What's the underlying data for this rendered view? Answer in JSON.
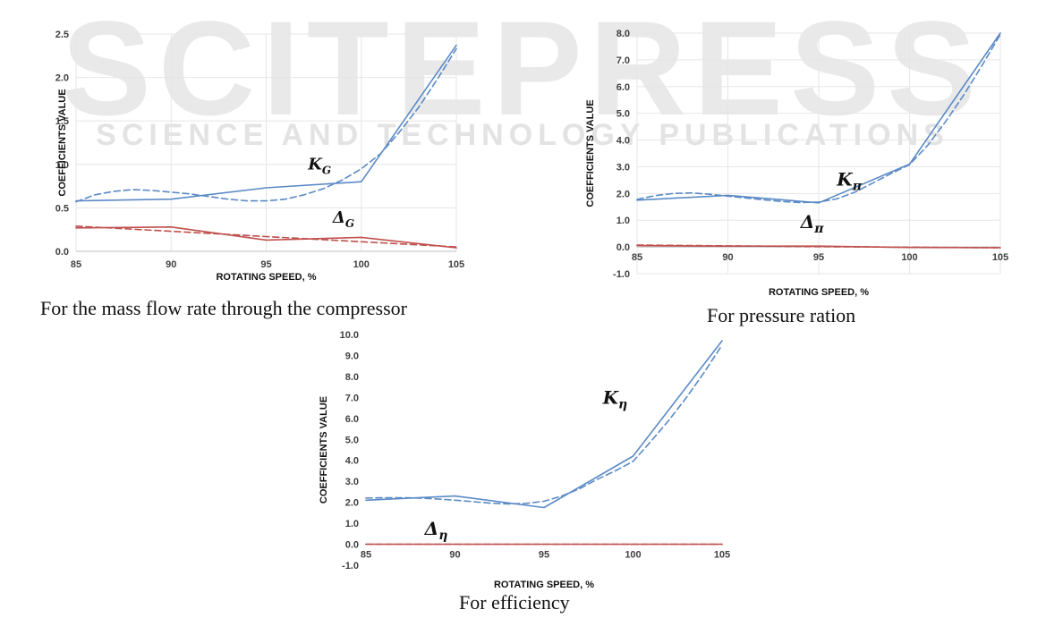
{
  "watermark": {
    "brand": "SCITEPRESS",
    "sub": "SCIENCE AND TECHNOLOGY PUBLICATIONS"
  },
  "colors": {
    "k_series": "#5b8ac6",
    "delta_series": "#c0504d",
    "grid": "#e6e6e6",
    "axis": "#bfbfbf"
  },
  "chart_data": [
    {
      "type": "line",
      "title": "",
      "caption": "For the mass flow rate through the compressor",
      "xlabel": "ROTATING SPEED, %",
      "ylabel": "COEFFICIENTS VALUE",
      "x": [
        85,
        90,
        95,
        100,
        105
      ],
      "xlim": [
        85,
        105
      ],
      "ylim": [
        0.0,
        2.5
      ],
      "yticks": [
        "0.0",
        "0.5",
        "1.0",
        "1.5",
        "2.0",
        "2.5"
      ],
      "grid": true,
      "series": [
        {
          "name": "K_G (line)",
          "style": "solid",
          "color": "#5b8ac6",
          "values": [
            0.58,
            0.6,
            0.73,
            0.8,
            2.37
          ]
        },
        {
          "name": "K_G (trend)",
          "style": "dashed",
          "color": "#5b8ac6",
          "x": [
            85,
            86,
            87,
            88,
            89,
            90,
            91,
            92,
            93,
            94,
            95,
            96,
            97,
            98,
            99,
            100,
            101,
            102,
            103,
            104,
            105
          ],
          "values": [
            0.57,
            0.65,
            0.69,
            0.71,
            0.7,
            0.68,
            0.66,
            0.63,
            0.6,
            0.58,
            0.58,
            0.6,
            0.65,
            0.72,
            0.82,
            0.95,
            1.12,
            1.37,
            1.65,
            1.98,
            2.33
          ]
        },
        {
          "name": "Δ_G (line)",
          "style": "solid",
          "color": "#c0504d",
          "values": [
            0.27,
            0.28,
            0.13,
            0.16,
            0.04
          ]
        },
        {
          "name": "Δ_G (trend)",
          "style": "dashed",
          "color": "#c0504d",
          "x": [
            85,
            90,
            95,
            100,
            105
          ],
          "values": [
            0.29,
            0.23,
            0.17,
            0.11,
            0.05
          ]
        }
      ],
      "annotations": [
        {
          "main": "K",
          "sub": "G",
          "x": 97.2,
          "y": 0.94
        },
        {
          "main": "Δ",
          "sub": "G",
          "x": 98.5,
          "y": 0.33
        }
      ]
    },
    {
      "type": "line",
      "title": "",
      "caption": "For pressure ration",
      "xlabel": "ROTATING SPEED, %",
      "ylabel": "COEFFICIENTS VALUE",
      "x": [
        85,
        90,
        95,
        100,
        105
      ],
      "xlim": [
        85,
        105
      ],
      "ylim": [
        -1.0,
        8.0
      ],
      "yticks": [
        "-1.0",
        "0.0",
        "1.0",
        "2.0",
        "3.0",
        "4.0",
        "5.0",
        "6.0",
        "7.0",
        "8.0"
      ],
      "grid": true,
      "series": [
        {
          "name": "K_π (line)",
          "style": "solid",
          "color": "#5b8ac6",
          "values": [
            1.75,
            1.93,
            1.65,
            3.1,
            8.0
          ]
        },
        {
          "name": "K_π (trend)",
          "style": "dashed",
          "color": "#5b8ac6",
          "x": [
            85,
            86,
            87,
            88,
            89,
            90,
            91,
            92,
            93,
            94,
            95,
            96,
            97,
            98,
            99,
            100,
            101,
            102,
            103,
            104,
            105
          ],
          "values": [
            1.78,
            1.92,
            2.0,
            2.02,
            1.97,
            1.9,
            1.83,
            1.76,
            1.7,
            1.66,
            1.68,
            1.8,
            2.05,
            2.4,
            2.75,
            3.08,
            3.8,
            4.7,
            5.7,
            6.8,
            7.95
          ]
        },
        {
          "name": "Δ_π (line)",
          "style": "solid",
          "color": "#c0504d",
          "values": [
            0.05,
            0.03,
            0.03,
            -0.02,
            -0.03
          ]
        },
        {
          "name": "Δ_π (trend)",
          "style": "dashed",
          "color": "#c0504d",
          "x": [
            85,
            90,
            95,
            100,
            105
          ],
          "values": [
            0.07,
            0.04,
            0.01,
            -0.01,
            -0.03
          ]
        }
      ],
      "annotations": [
        {
          "main": "K",
          "sub": "π",
          "x": 96.0,
          "y": 2.3
        },
        {
          "main": "Δ",
          "sub": "π",
          "x": 94.0,
          "y": 0.7
        }
      ]
    },
    {
      "type": "line",
      "title": "",
      "caption": "For efficiency",
      "xlabel": "ROTATING SPEED, %",
      "ylabel": "COEFFICIENTS VALUE",
      "x": [
        85,
        90,
        95,
        100,
        105
      ],
      "xlim": [
        85,
        105
      ],
      "ylim": [
        -1.0,
        10.0
      ],
      "yticks": [
        "-1.0",
        "0.0",
        "1.0",
        "2.0",
        "3.0",
        "4.0",
        "5.0",
        "6.0",
        "7.0",
        "8.0",
        "9.0",
        "10.0"
      ],
      "grid": false,
      "series": [
        {
          "name": "K_η (line)",
          "style": "solid",
          "color": "#5b8ac6",
          "values": [
            2.1,
            2.3,
            1.75,
            4.2,
            9.7
          ]
        },
        {
          "name": "K_η (trend)",
          "style": "dashed",
          "color": "#5b8ac6",
          "x": [
            85,
            86,
            87,
            88,
            89,
            90,
            91,
            92,
            93,
            94,
            95,
            96,
            97,
            98,
            99,
            100,
            101,
            102,
            103,
            104,
            105
          ],
          "values": [
            2.2,
            2.22,
            2.22,
            2.2,
            2.16,
            2.1,
            2.03,
            1.96,
            1.92,
            1.95,
            2.05,
            2.3,
            2.65,
            3.1,
            3.5,
            3.95,
            4.9,
            5.9,
            7.0,
            8.2,
            9.5
          ]
        },
        {
          "name": "Δ_η (line)",
          "style": "solid",
          "color": "#c0504d",
          "values": [
            0.0,
            0.0,
            0.0,
            0.0,
            0.0
          ]
        },
        {
          "name": "Δ_η (trend)",
          "style": "dashed",
          "color": "#c0504d",
          "x": [
            85,
            90,
            95,
            100,
            105
          ],
          "values": [
            0.0,
            0.0,
            0.0,
            0.0,
            0.0
          ]
        }
      ],
      "annotations": [
        {
          "main": "K",
          "sub": "η",
          "x": 98.3,
          "y": 6.7
        },
        {
          "main": "Δ",
          "sub": "η",
          "x": 88.3,
          "y": 0.45
        }
      ]
    }
  ]
}
